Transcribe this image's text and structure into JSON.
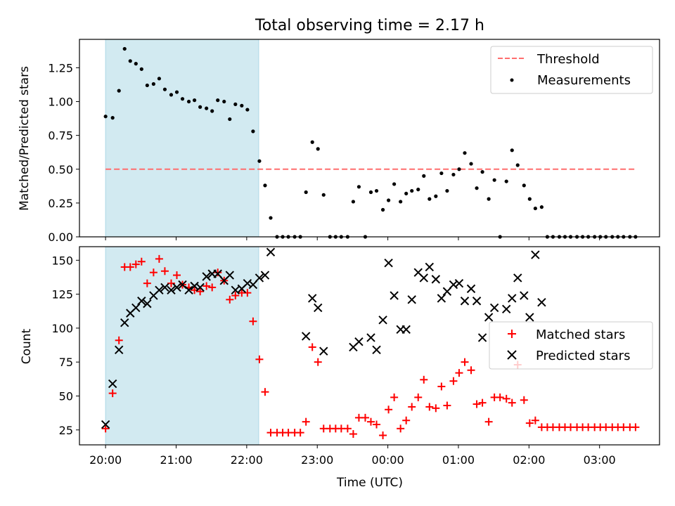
{
  "figure": {
    "title": "Total observing time = 2.17 h",
    "xlabel": "Time (UTC)"
  },
  "colors": {
    "shade": "#add8e6",
    "threshold": "#ff6e6e",
    "measurement": "#000000",
    "matched": "#ff0000",
    "predicted": "#000000"
  },
  "chart_data": [
    {
      "type": "scatter",
      "panel": "top",
      "ylabel": "Matched/Predicted stars",
      "xlim": [
        19.63,
        27.85
      ],
      "ylim": [
        0,
        1.46
      ],
      "x_ticks": [
        20,
        21,
        22,
        23,
        24,
        25,
        26,
        27
      ],
      "x_tick_labels": [
        "20:00",
        "21:00",
        "22:00",
        "23:00",
        "00:00",
        "01:00",
        "02:00",
        "03:00"
      ],
      "y_ticks": [
        0,
        0.25,
        0.5,
        0.75,
        1.0,
        1.25
      ],
      "y_tick_labels": [
        "0.00",
        "0.25",
        "0.50",
        "0.75",
        "1.00",
        "1.25"
      ],
      "shaded_span": [
        20.0,
        22.17
      ],
      "legend": {
        "position": "top-right",
        "threshold_label": "Threshold",
        "measurement_label": "Measurements"
      },
      "threshold": 0.5,
      "threshold_x": [
        20.0,
        27.5
      ],
      "series": [
        {
          "name": "Measurements",
          "points": [
            [
              20.0,
              0.89
            ],
            [
              20.1,
              0.88
            ],
            [
              20.19,
              1.08
            ],
            [
              20.27,
              1.39
            ],
            [
              20.35,
              1.3
            ],
            [
              20.43,
              1.28
            ],
            [
              20.51,
              1.24
            ],
            [
              20.59,
              1.12
            ],
            [
              20.68,
              1.13
            ],
            [
              20.76,
              1.17
            ],
            [
              20.84,
              1.09
            ],
            [
              20.93,
              1.05
            ],
            [
              21.01,
              1.07
            ],
            [
              21.09,
              1.02
            ],
            [
              21.18,
              1.0
            ],
            [
              21.26,
              1.01
            ],
            [
              21.34,
              0.96
            ],
            [
              21.43,
              0.95
            ],
            [
              21.51,
              0.93
            ],
            [
              21.59,
              1.01
            ],
            [
              21.68,
              1.0
            ],
            [
              21.76,
              0.87
            ],
            [
              21.84,
              0.98
            ],
            [
              21.93,
              0.97
            ],
            [
              22.01,
              0.94
            ],
            [
              22.09,
              0.78
            ],
            [
              22.18,
              0.56
            ],
            [
              22.26,
              0.38
            ],
            [
              22.34,
              0.14
            ],
            [
              22.43,
              0.0
            ],
            [
              22.51,
              0.0
            ],
            [
              22.59,
              0.0
            ],
            [
              22.68,
              0.0
            ],
            [
              22.76,
              0.0
            ],
            [
              22.84,
              0.33
            ],
            [
              22.93,
              0.7
            ],
            [
              23.01,
              0.65
            ],
            [
              23.09,
              0.31
            ],
            [
              23.18,
              0.0
            ],
            [
              23.26,
              0.0
            ],
            [
              23.34,
              0.0
            ],
            [
              23.43,
              0.0
            ],
            [
              23.51,
              0.26
            ],
            [
              23.59,
              0.37
            ],
            [
              23.68,
              0.0
            ],
            [
              23.76,
              0.33
            ],
            [
              23.84,
              0.34
            ],
            [
              23.93,
              0.2
            ],
            [
              24.01,
              0.27
            ],
            [
              24.09,
              0.39
            ],
            [
              24.18,
              0.26
            ],
            [
              24.26,
              0.32
            ],
            [
              24.34,
              0.34
            ],
            [
              24.43,
              0.35
            ],
            [
              24.51,
              0.45
            ],
            [
              24.59,
              0.28
            ],
            [
              24.68,
              0.3
            ],
            [
              24.76,
              0.47
            ],
            [
              24.84,
              0.34
            ],
            [
              24.93,
              0.46
            ],
            [
              25.01,
              0.5
            ],
            [
              25.09,
              0.62
            ],
            [
              25.18,
              0.54
            ],
            [
              25.26,
              0.36
            ],
            [
              25.34,
              0.48
            ],
            [
              25.43,
              0.28
            ],
            [
              25.51,
              0.42
            ],
            [
              25.59,
              0.0
            ],
            [
              25.68,
              0.41
            ],
            [
              25.76,
              0.64
            ],
            [
              25.84,
              0.53
            ],
            [
              25.93,
              0.38
            ],
            [
              26.01,
              0.28
            ],
            [
              26.09,
              0.21
            ],
            [
              26.18,
              0.22
            ],
            [
              26.26,
              0.0
            ],
            [
              26.34,
              0.0
            ],
            [
              26.43,
              0.0
            ],
            [
              26.51,
              0.0
            ],
            [
              26.59,
              0.0
            ],
            [
              26.68,
              0.0
            ],
            [
              26.76,
              0.0
            ],
            [
              26.84,
              0.0
            ],
            [
              26.93,
              0.0
            ],
            [
              27.01,
              0.0
            ],
            [
              27.09,
              0.0
            ],
            [
              27.18,
              0.0
            ],
            [
              27.26,
              0.0
            ],
            [
              27.34,
              0.0
            ],
            [
              27.43,
              0.0
            ],
            [
              27.51,
              0.0
            ]
          ]
        }
      ]
    },
    {
      "type": "scatter",
      "panel": "bottom",
      "ylabel": "Count",
      "xlim": [
        19.63,
        27.85
      ],
      "ylim": [
        14,
        160
      ],
      "x_ticks": [
        20,
        21,
        22,
        23,
        24,
        25,
        26,
        27
      ],
      "x_tick_labels": [
        "20:00",
        "21:00",
        "22:00",
        "23:00",
        "00:00",
        "01:00",
        "02:00",
        "03:00"
      ],
      "y_ticks": [
        25,
        50,
        75,
        100,
        125,
        150
      ],
      "y_tick_labels": [
        "25",
        "50",
        "75",
        "100",
        "125",
        "150"
      ],
      "shaded_span": [
        20.0,
        22.17
      ],
      "legend": {
        "position": "center-right",
        "matched_label": "Matched stars",
        "predicted_label": "Predicted stars"
      },
      "series": [
        {
          "name": "Matched stars",
          "marker": "+",
          "points": [
            [
              20.0,
              26
            ],
            [
              20.1,
              52
            ],
            [
              20.19,
              91
            ],
            [
              20.27,
              145
            ],
            [
              20.35,
              145
            ],
            [
              20.43,
              147
            ],
            [
              20.51,
              149
            ],
            [
              20.59,
              133
            ],
            [
              20.68,
              141
            ],
            [
              20.76,
              151
            ],
            [
              20.84,
              142
            ],
            [
              20.93,
              133
            ],
            [
              21.01,
              139
            ],
            [
              21.09,
              132
            ],
            [
              21.18,
              130
            ],
            [
              21.26,
              128
            ],
            [
              21.34,
              127
            ],
            [
              21.43,
              131
            ],
            [
              21.51,
              130
            ],
            [
              21.59,
              141
            ],
            [
              21.68,
              135
            ],
            [
              21.76,
              121
            ],
            [
              21.84,
              124
            ],
            [
              21.93,
              126
            ],
            [
              22.01,
              126
            ],
            [
              22.09,
              105
            ],
            [
              22.18,
              77
            ],
            [
              22.26,
              53
            ],
            [
              22.34,
              23
            ],
            [
              22.43,
              23
            ],
            [
              22.51,
              23
            ],
            [
              22.59,
              23
            ],
            [
              22.68,
              23
            ],
            [
              22.76,
              23
            ],
            [
              22.84,
              31
            ],
            [
              22.93,
              86
            ],
            [
              23.01,
              75
            ],
            [
              23.09,
              26
            ],
            [
              23.18,
              26
            ],
            [
              23.26,
              26
            ],
            [
              23.34,
              26
            ],
            [
              23.43,
              26
            ],
            [
              23.51,
              22
            ],
            [
              23.59,
              34
            ],
            [
              23.68,
              34
            ],
            [
              23.76,
              31
            ],
            [
              23.84,
              29
            ],
            [
              23.93,
              21
            ],
            [
              24.01,
              40
            ],
            [
              24.09,
              49
            ],
            [
              24.18,
              26
            ],
            [
              24.26,
              32
            ],
            [
              24.34,
              42
            ],
            [
              24.43,
              49
            ],
            [
              24.51,
              62
            ],
            [
              24.59,
              42
            ],
            [
              24.68,
              41
            ],
            [
              24.76,
              57
            ],
            [
              24.84,
              43
            ],
            [
              24.93,
              61
            ],
            [
              25.01,
              67
            ],
            [
              25.09,
              75
            ],
            [
              25.18,
              69
            ],
            [
              25.26,
              44
            ],
            [
              25.34,
              45
            ],
            [
              25.43,
              31
            ],
            [
              25.51,
              49
            ],
            [
              25.59,
              49
            ],
            [
              25.68,
              48
            ],
            [
              25.76,
              45
            ],
            [
              25.84,
              73
            ],
            [
              25.93,
              47
            ],
            [
              26.01,
              30
            ],
            [
              26.09,
              32
            ],
            [
              26.18,
              27
            ],
            [
              26.26,
              27
            ],
            [
              26.34,
              27
            ],
            [
              26.43,
              27
            ],
            [
              26.51,
              27
            ],
            [
              26.59,
              27
            ],
            [
              26.68,
              27
            ],
            [
              26.76,
              27
            ],
            [
              26.84,
              27
            ],
            [
              26.93,
              27
            ],
            [
              27.01,
              27
            ],
            [
              27.09,
              27
            ],
            [
              27.18,
              27
            ],
            [
              27.26,
              27
            ],
            [
              27.34,
              27
            ],
            [
              27.43,
              27
            ],
            [
              27.51,
              27
            ]
          ]
        },
        {
          "name": "Predicted stars",
          "marker": "x",
          "points": [
            [
              20.0,
              29
            ],
            [
              20.1,
              59
            ],
            [
              20.19,
              84
            ],
            [
              20.27,
              104
            ],
            [
              20.35,
              111
            ],
            [
              20.43,
              115
            ],
            [
              20.51,
              120
            ],
            [
              20.59,
              118
            ],
            [
              20.68,
              124
            ],
            [
              20.76,
              128
            ],
            [
              20.84,
              130
            ],
            [
              20.93,
              128
            ],
            [
              21.01,
              130
            ],
            [
              21.09,
              132
            ],
            [
              21.18,
              128
            ],
            [
              21.26,
              131
            ],
            [
              21.34,
              130
            ],
            [
              21.43,
              138
            ],
            [
              21.51,
              140
            ],
            [
              21.59,
              140
            ],
            [
              21.68,
              135
            ],
            [
              21.76,
              139
            ],
            [
              21.84,
              128
            ],
            [
              21.93,
              129
            ],
            [
              22.01,
              133
            ],
            [
              22.09,
              132
            ],
            [
              22.18,
              137
            ],
            [
              22.26,
              139
            ],
            [
              22.34,
              156
            ],
            [
              22.84,
              94
            ],
            [
              22.93,
              122
            ],
            [
              23.01,
              115
            ],
            [
              23.09,
              83
            ],
            [
              23.51,
              86
            ],
            [
              23.59,
              90
            ],
            [
              23.76,
              93
            ],
            [
              23.84,
              84
            ],
            [
              23.93,
              106
            ],
            [
              24.01,
              148
            ],
            [
              24.09,
              124
            ],
            [
              24.18,
              99
            ],
            [
              24.26,
              99
            ],
            [
              24.34,
              121
            ],
            [
              24.43,
              141
            ],
            [
              24.51,
              137
            ],
            [
              24.59,
              145
            ],
            [
              24.68,
              136
            ],
            [
              24.76,
              122
            ],
            [
              24.84,
              127
            ],
            [
              24.93,
              132
            ],
            [
              25.01,
              133
            ],
            [
              25.09,
              120
            ],
            [
              25.18,
              129
            ],
            [
              25.26,
              120
            ],
            [
              25.34,
              93
            ],
            [
              25.43,
              108
            ],
            [
              25.51,
              115
            ],
            [
              25.68,
              114
            ],
            [
              25.76,
              122
            ],
            [
              25.84,
              137
            ],
            [
              25.93,
              124
            ],
            [
              26.01,
              108
            ],
            [
              26.09,
              154
            ],
            [
              26.18,
              119
            ]
          ]
        }
      ]
    }
  ]
}
